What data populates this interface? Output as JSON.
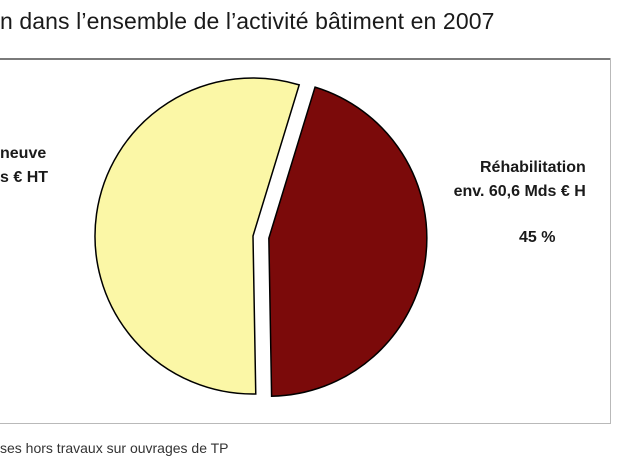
{
  "header": {
    "title": "n dans l’ensemble de l’activité bâtiment en 2007"
  },
  "chart_data": {
    "type": "pie",
    "slices": [
      {
        "name": "Réhabilitation",
        "value": 45,
        "color": "#7b0a0a",
        "exploded": true
      },
      {
        "name": "neuve",
        "value": 55,
        "color": "#fbf7a6",
        "exploded": false
      }
    ],
    "labels": {
      "left_line1": "neuve",
      "left_line2": "s € HT",
      "right_line1": "Réhabilitation",
      "right_line2": "env. 60,6  Mds € H",
      "right_pct": "45 %"
    },
    "edge_color": "#000000"
  },
  "footnote": "ses hors travaux sur ouvrages de TP"
}
